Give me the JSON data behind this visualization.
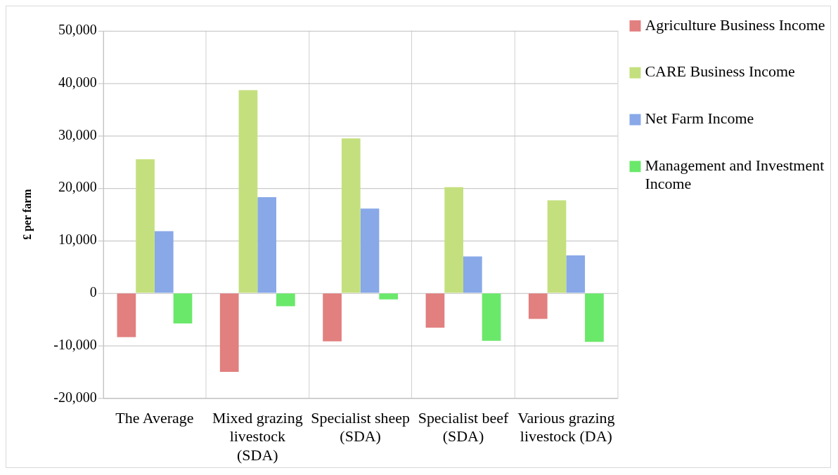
{
  "chart_data": {
    "type": "bar",
    "ylabel": "£ per farm",
    "categories": [
      "The Average",
      "Mixed grazing livestock (SDA)",
      "Specialist sheep (SDA)",
      "Specialist beef (SDA)",
      "Various grazing livestock (DA)"
    ],
    "series": [
      {
        "name": "Agriculture Business Income",
        "color": "#e27f7f",
        "values": [
          -8400,
          -15000,
          -9200,
          -6600,
          -4900
        ]
      },
      {
        "name": "CARE Business Income",
        "color": "#c4e07e",
        "values": [
          25500,
          38700,
          29500,
          20200,
          17700
        ]
      },
      {
        "name": "Net Farm Income",
        "color": "#88a8e8",
        "values": [
          11800,
          18300,
          16100,
          7000,
          7200
        ]
      },
      {
        "name": "Management and Investment Income",
        "color": "#6ae86a",
        "values": [
          -5800,
          -2500,
          -1200,
          -9100,
          -9300
        ]
      }
    ],
    "ylim": [
      -20000,
      50000
    ],
    "yticks": [
      {
        "value": -20000,
        "label": "-20,000"
      },
      {
        "value": -10000,
        "label": "-10,000"
      },
      {
        "value": 0,
        "label": "0"
      },
      {
        "value": 10000,
        "label": "10,000"
      },
      {
        "value": 20000,
        "label": "20,000"
      },
      {
        "value": 30000,
        "label": "30,000"
      },
      {
        "value": 40000,
        "label": "40,000"
      },
      {
        "value": 50000,
        "label": "50,000"
      }
    ],
    "grid": true,
    "legend": "top right"
  }
}
